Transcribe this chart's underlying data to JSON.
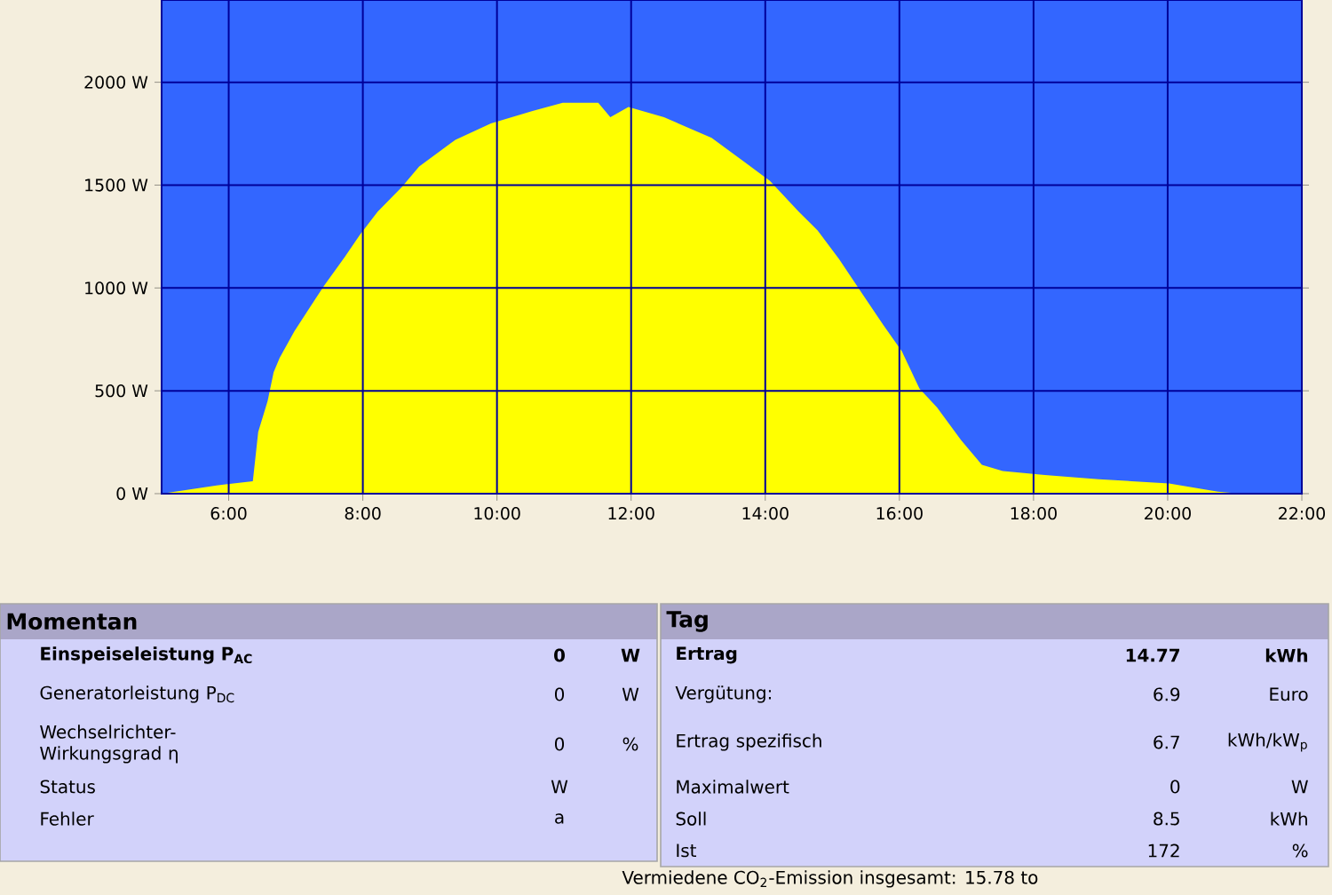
{
  "chart_data": [
    {
      "type": "area",
      "color": "#ffff00",
      "xlim": [
        5,
        22
      ],
      "ylim": [
        0,
        2400
      ],
      "grid": true,
      "xticks": [
        {
          "value": 6,
          "label": "6:00"
        },
        {
          "value": 8,
          "label": "8:00"
        },
        {
          "value": 10,
          "label": "10:00"
        },
        {
          "value": 12,
          "label": "12:00"
        },
        {
          "value": 14,
          "label": "14:00"
        },
        {
          "value": 16,
          "label": "16:00"
        },
        {
          "value": 18,
          "label": "18:00"
        },
        {
          "value": 20,
          "label": "20:00"
        },
        {
          "value": 22,
          "label": "22:00"
        }
      ],
      "yticks": [
        {
          "value": 0,
          "label": "0 W"
        },
        {
          "value": 500,
          "label": "500 W"
        },
        {
          "value": 1000,
          "label": "1000 W"
        },
        {
          "value": 1500,
          "label": "1500 W"
        },
        {
          "value": 2000,
          "label": "2000 W"
        }
      ],
      "x": [
        5.0,
        5.2,
        5.82,
        6.36,
        6.44,
        6.58,
        6.67,
        6.76,
        6.98,
        7.24,
        7.42,
        7.73,
        7.96,
        8.22,
        8.58,
        8.84,
        9.38,
        9.91,
        10.53,
        10.98,
        11.51,
        11.69,
        11.96,
        12.49,
        13.2,
        13.7,
        14.07,
        14.5,
        14.78,
        15.1,
        15.45,
        15.76,
        16.04,
        16.3,
        16.56,
        16.92,
        17.23,
        17.54,
        18.17,
        18.97,
        20.02,
        20.75,
        21.1
      ],
      "values": [
        0,
        10,
        40,
        60,
        300,
        450,
        590,
        660,
        790,
        920,
        1010,
        1150,
        1260,
        1370,
        1490,
        1590,
        1720,
        1800,
        1860,
        1900,
        1900,
        1830,
        1880,
        1830,
        1730,
        1610,
        1520,
        1370,
        1280,
        1140,
        970,
        820,
        690,
        510,
        420,
        260,
        140,
        110,
        90,
        70,
        50,
        10,
        0
      ]
    },
    {
      "type": "other",
      "title": "Momentan",
      "annotations": [
        "Einspeiseleistung P$_{AC}$",
        "0",
        "W",
        "Generatorleistung P$_{DC}$",
        "0",
        "W",
        "Wechselrichter- Wirkungsgrad η",
        "0",
        "%",
        "Status",
        "W",
        "Fehler",
        "a"
      ]
    },
    {
      "type": "other",
      "title": "Tag",
      "annotations": [
        "Ertrag",
        "14.77",
        "kWh",
        "Vergütung:",
        "6.9",
        "Euro",
        "Ertrag spezifisch",
        "6.7",
        "kWh/kW$_{p}$",
        "Maximalwert",
        "0",
        "W",
        "Soll",
        "8.5",
        "kWh",
        "Ist",
        "172",
        "%",
        "Vermiedene CO$_{2}$-Emission insgesamt: 15.78 to"
      ]
    }
  ]
}
